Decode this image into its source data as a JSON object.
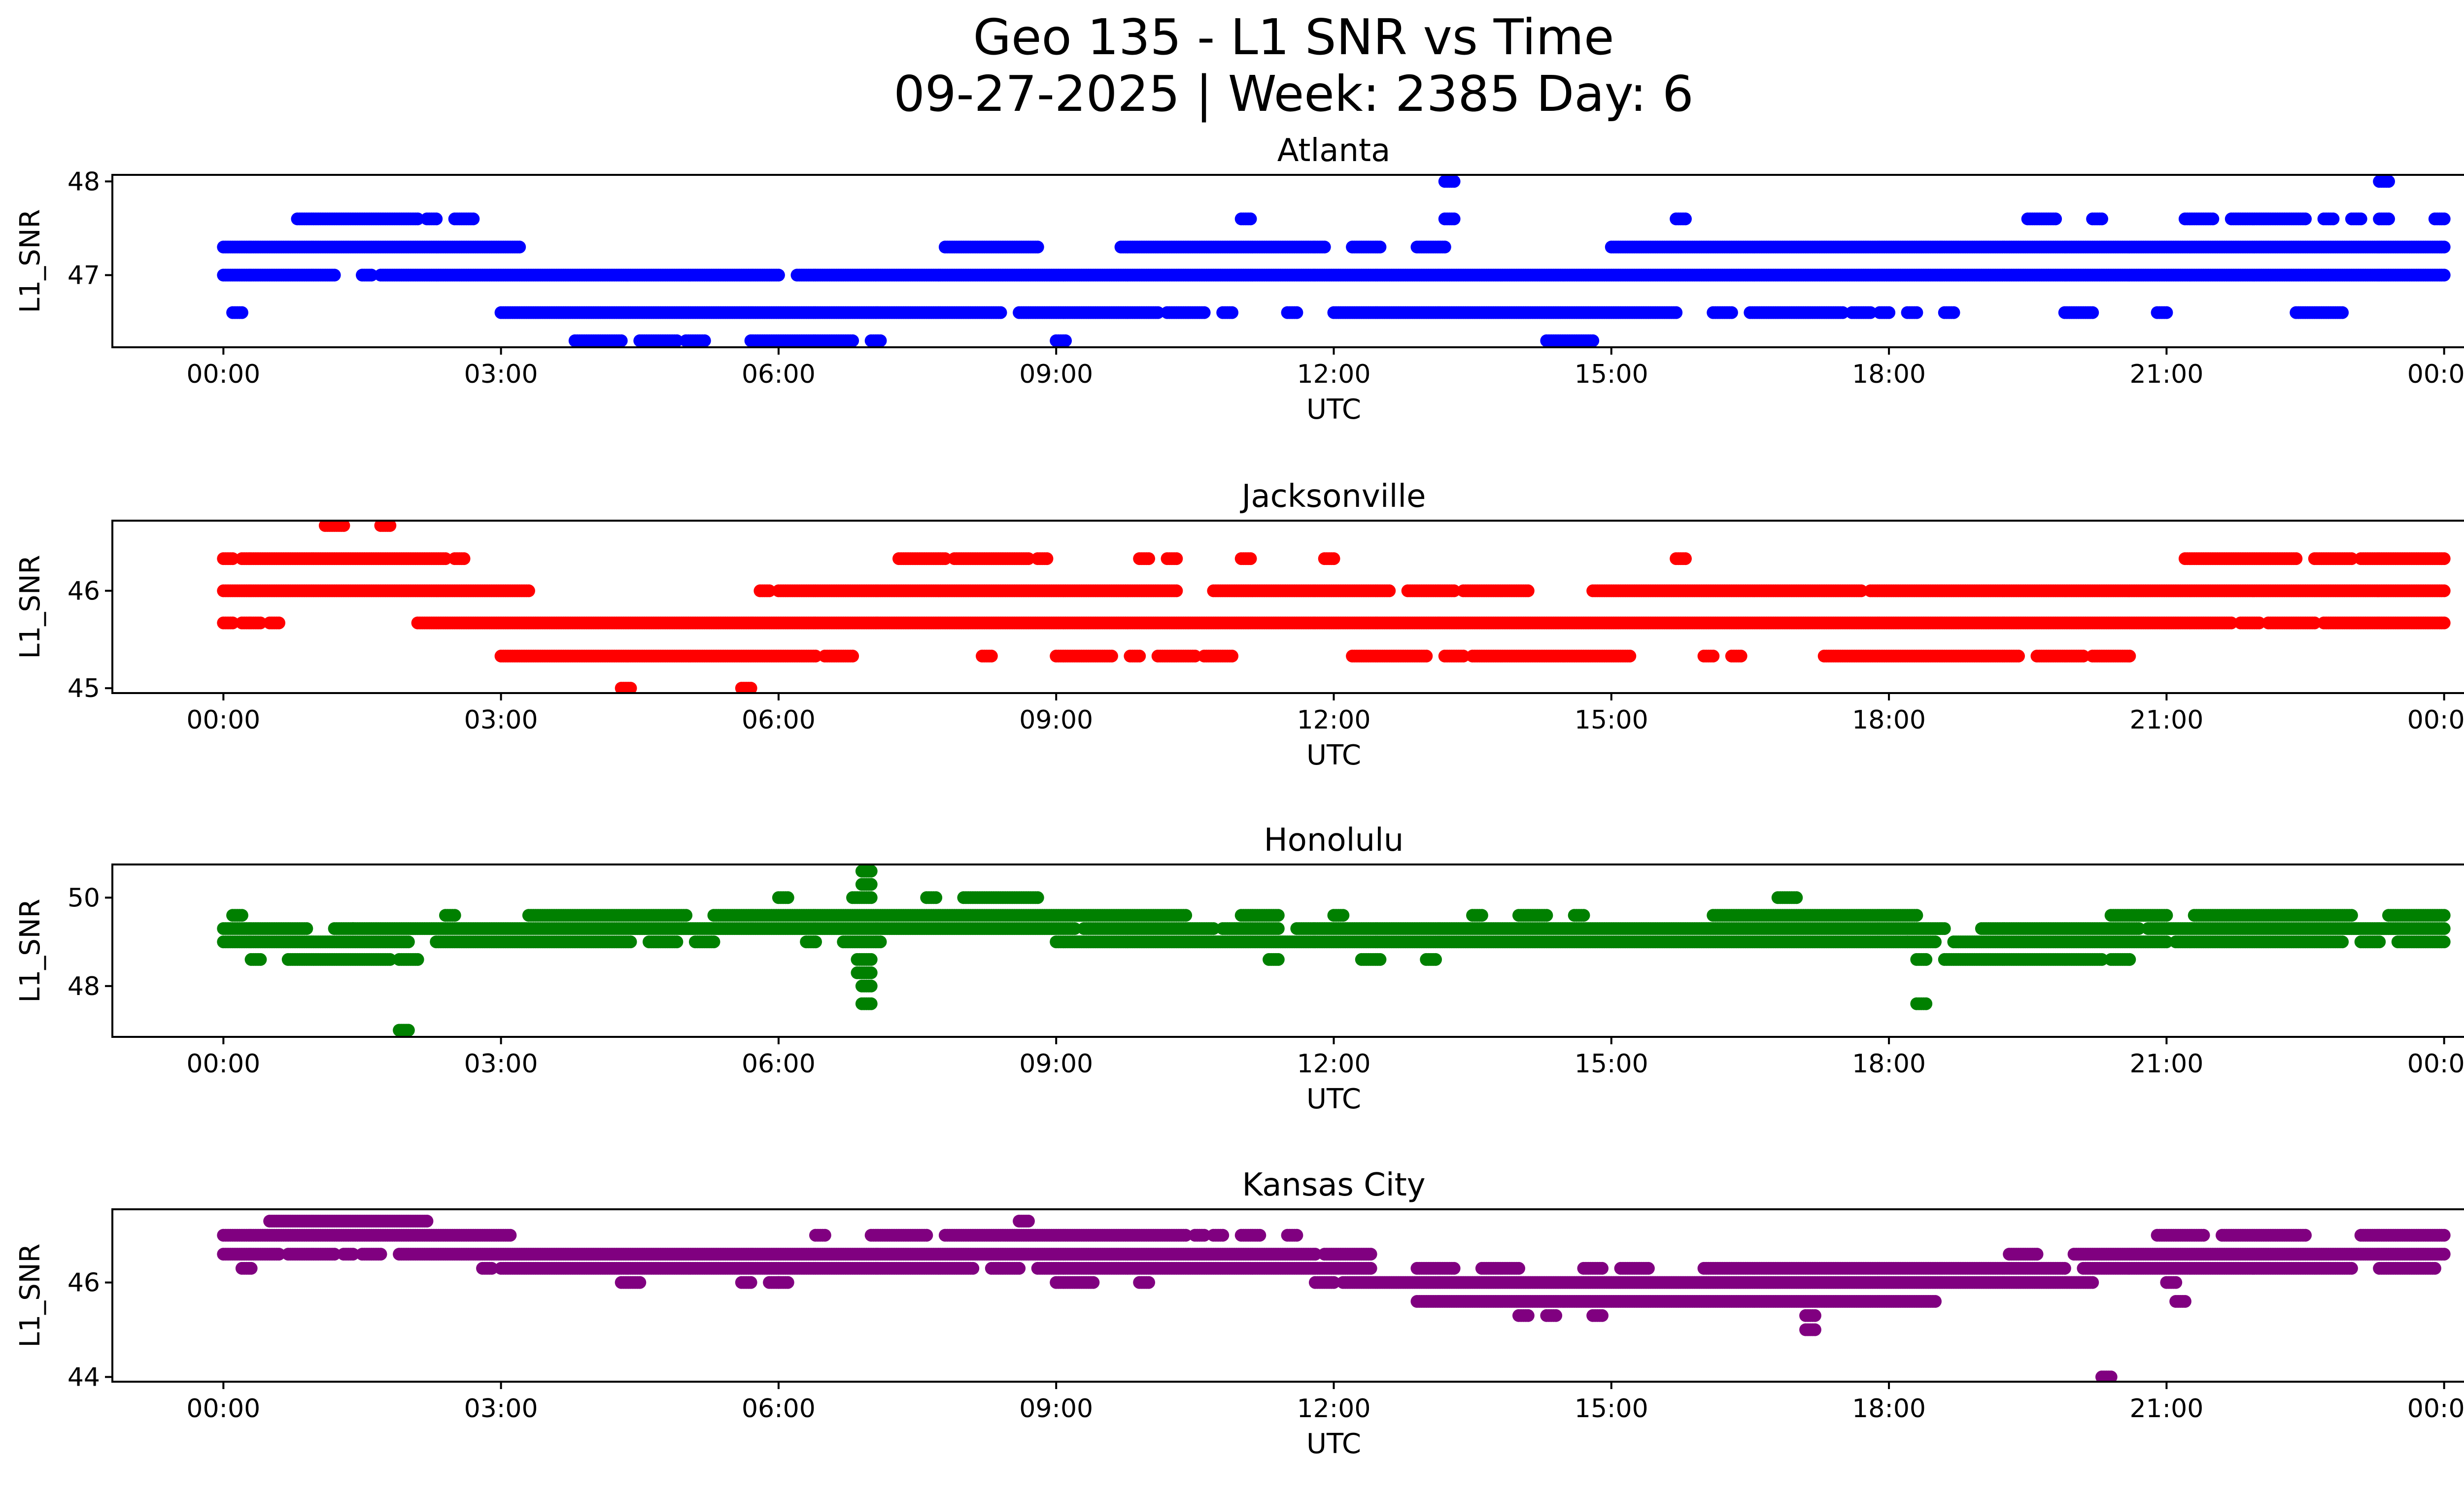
{
  "figure": {
    "title_line1": "Geo 135 - L1 SNR vs Time",
    "title_line2": "09-27-2025 | Week: 2385 Day: 6"
  },
  "chart_data": [
    {
      "type": "scatter",
      "title": "Atlanta",
      "xlabel": "UTC",
      "ylabel": "L1_SNR",
      "color": "#0000ff",
      "x_tick_labels": [
        "00:00",
        "03:00",
        "06:00",
        "09:00",
        "12:00",
        "15:00",
        "18:00",
        "21:00",
        "00:00"
      ],
      "x_tick_hours": [
        0,
        3,
        6,
        9,
        12,
        15,
        18,
        21,
        24
      ],
      "xlim_hours": [
        -1.2,
        25.2
      ],
      "y_ticks": [
        47,
        48
      ],
      "y_tick_labels": [
        "47",
        "48"
      ],
      "ylim": [
        46.23,
        48.07
      ],
      "levels": [
        {
          "y": 46.3,
          "segments": [
            [
              3.8,
              4.3
            ],
            [
              4.5,
              4.9
            ],
            [
              5.0,
              5.2
            ],
            [
              5.7,
              6.8
            ],
            [
              7.0,
              7.1
            ],
            [
              9.0,
              9.1
            ],
            [
              14.3,
              14.8
            ]
          ]
        },
        {
          "y": 46.6,
          "segments": [
            [
              0.1,
              0.2
            ],
            [
              3.0,
              8.4
            ],
            [
              8.6,
              10.1
            ],
            [
              10.2,
              10.6
            ],
            [
              10.8,
              10.9
            ],
            [
              11.5,
              11.6
            ],
            [
              12.0,
              15.7
            ],
            [
              16.1,
              16.3
            ],
            [
              16.5,
              17.5
            ],
            [
              17.6,
              17.8
            ],
            [
              17.9,
              18.0
            ],
            [
              18.2,
              18.3
            ],
            [
              18.6,
              18.7
            ],
            [
              19.9,
              20.2
            ],
            [
              20.9,
              21.0
            ],
            [
              22.4,
              22.9
            ]
          ]
        },
        {
          "y": 47.0,
          "segments": [
            [
              0.0,
              1.2
            ],
            [
              1.5,
              1.6
            ],
            [
              1.7,
              6.0
            ],
            [
              6.2,
              24.0
            ]
          ]
        },
        {
          "y": 47.3,
          "segments": [
            [
              0.0,
              3.2
            ],
            [
              7.8,
              8.8
            ],
            [
              9.7,
              11.9
            ],
            [
              12.2,
              12.5
            ],
            [
              12.9,
              13.2
            ],
            [
              15.0,
              24.0
            ]
          ]
        },
        {
          "y": 47.6,
          "segments": [
            [
              0.8,
              2.1
            ],
            [
              2.2,
              2.3
            ],
            [
              2.5,
              2.7
            ],
            [
              11.0,
              11.1
            ],
            [
              13.2,
              13.3
            ],
            [
              15.7,
              15.8
            ],
            [
              19.5,
              19.8
            ],
            [
              20.2,
              20.3
            ],
            [
              21.2,
              21.5
            ],
            [
              21.7,
              22.5
            ],
            [
              22.7,
              22.8
            ],
            [
              23.0,
              23.1
            ],
            [
              23.3,
              23.4
            ],
            [
              23.9,
              24.0
            ]
          ]
        },
        {
          "y": 48.0,
          "segments": [
            [
              13.2,
              13.3
            ],
            [
              23.3,
              23.4
            ]
          ]
        }
      ]
    },
    {
      "type": "scatter",
      "title": "Jacksonville",
      "xlabel": "UTC",
      "ylabel": "L1_SNR",
      "color": "#ff0000",
      "x_tick_labels": [
        "00:00",
        "03:00",
        "06:00",
        "09:00",
        "12:00",
        "15:00",
        "18:00",
        "21:00",
        "00:00"
      ],
      "x_tick_hours": [
        0,
        3,
        6,
        9,
        12,
        15,
        18,
        21,
        24
      ],
      "xlim_hours": [
        -1.2,
        25.2
      ],
      "y_ticks": [
        45,
        46
      ],
      "y_tick_labels": [
        "45",
        "46"
      ],
      "ylim": [
        44.95,
        46.72
      ],
      "levels": [
        {
          "y": 45.0,
          "segments": [
            [
              4.3,
              4.4
            ],
            [
              5.6,
              5.7
            ]
          ]
        },
        {
          "y": 45.33,
          "segments": [
            [
              3.0,
              6.4
            ],
            [
              6.5,
              6.8
            ],
            [
              8.2,
              8.3
            ],
            [
              9.0,
              9.6
            ],
            [
              9.8,
              9.9
            ],
            [
              10.1,
              10.5
            ],
            [
              10.6,
              10.9
            ],
            [
              12.2,
              13.0
            ],
            [
              13.2,
              13.4
            ],
            [
              13.5,
              15.2
            ],
            [
              16.0,
              16.1
            ],
            [
              16.3,
              16.4
            ],
            [
              17.3,
              19.4
            ],
            [
              19.6,
              20.1
            ],
            [
              20.2,
              20.6
            ]
          ]
        },
        {
          "y": 45.67,
          "segments": [
            [
              0.0,
              0.1
            ],
            [
              0.2,
              0.4
            ],
            [
              0.5,
              0.6
            ],
            [
              2.1,
              21.7
            ],
            [
              21.8,
              22.0
            ],
            [
              22.1,
              22.6
            ],
            [
              22.7,
              24.0
            ]
          ]
        },
        {
          "y": 46.0,
          "segments": [
            [
              0.0,
              3.3
            ],
            [
              5.8,
              5.9
            ],
            [
              6.0,
              10.3
            ],
            [
              10.7,
              12.6
            ],
            [
              12.8,
              13.3
            ],
            [
              13.4,
              14.1
            ],
            [
              14.8,
              17.7
            ],
            [
              17.8,
              24.0
            ]
          ]
        },
        {
          "y": 46.33,
          "segments": [
            [
              0.0,
              0.1
            ],
            [
              0.2,
              2.4
            ],
            [
              2.5,
              2.6
            ],
            [
              7.3,
              7.8
            ],
            [
              7.9,
              8.7
            ],
            [
              8.8,
              8.9
            ],
            [
              9.9,
              10.0
            ],
            [
              10.2,
              10.3
            ],
            [
              11.0,
              11.1
            ],
            [
              11.9,
              12.0
            ],
            [
              15.7,
              15.8
            ],
            [
              21.2,
              22.4
            ],
            [
              22.6,
              23.0
            ],
            [
              23.1,
              24.0
            ]
          ]
        },
        {
          "y": 46.67,
          "segments": [
            [
              1.1,
              1.3
            ],
            [
              1.7,
              1.8
            ]
          ]
        }
      ]
    },
    {
      "type": "scatter",
      "title": "Honolulu",
      "xlabel": "UTC",
      "ylabel": "L1_SNR",
      "color": "#008000",
      "x_tick_labels": [
        "00:00",
        "03:00",
        "06:00",
        "09:00",
        "12:00",
        "15:00",
        "18:00",
        "21:00",
        "00:00"
      ],
      "x_tick_hours": [
        0,
        3,
        6,
        9,
        12,
        15,
        18,
        21,
        24
      ],
      "xlim_hours": [
        -1.2,
        25.2
      ],
      "y_ticks": [
        48,
        50
      ],
      "y_tick_labels": [
        "48",
        "50"
      ],
      "ylim": [
        46.85,
        50.75
      ],
      "levels": [
        {
          "y": 47.0,
          "segments": [
            [
              1.9,
              2.0
            ]
          ]
        },
        {
          "y": 47.6,
          "segments": [
            [
              6.9,
              7.0
            ],
            [
              18.3,
              18.4
            ]
          ]
        },
        {
          "y": 48.0,
          "segments": [
            [
              6.9,
              7.0
            ]
          ]
        },
        {
          "y": 48.3,
          "segments": [
            [
              6.85,
              7.0
            ]
          ]
        },
        {
          "y": 48.6,
          "segments": [
            [
              0.3,
              0.4
            ],
            [
              0.7,
              1.8
            ],
            [
              1.9,
              2.1
            ],
            [
              6.85,
              7.0
            ],
            [
              11.3,
              11.4
            ],
            [
              12.3,
              12.5
            ],
            [
              13.0,
              13.1
            ],
            [
              18.3,
              18.4
            ],
            [
              18.6,
              20.3
            ],
            [
              20.4,
              20.6
            ]
          ]
        },
        {
          "y": 49.0,
          "segments": [
            [
              0.0,
              2.0
            ],
            [
              2.3,
              4.4
            ],
            [
              4.6,
              4.9
            ],
            [
              5.1,
              5.3
            ],
            [
              6.3,
              6.4
            ],
            [
              6.7,
              7.1
            ],
            [
              9.0,
              18.2
            ],
            [
              18.2,
              18.5
            ],
            [
              18.7,
              21.0
            ],
            [
              21.1,
              22.9
            ],
            [
              23.1,
              23.3
            ],
            [
              23.5,
              24.0
            ]
          ]
        },
        {
          "y": 49.3,
          "segments": [
            [
              0.0,
              0.9
            ],
            [
              1.2,
              1.4
            ],
            [
              1.4,
              9.2
            ],
            [
              9.3,
              10.7
            ],
            [
              10.8,
              11.4
            ],
            [
              11.6,
              18.6
            ],
            [
              19.0,
              20.7
            ],
            [
              20.8,
              24.0
            ]
          ]
        },
        {
          "y": 49.6,
          "segments": [
            [
              0.1,
              0.2
            ],
            [
              2.4,
              2.5
            ],
            [
              3.3,
              5.0
            ],
            [
              5.3,
              10.4
            ],
            [
              11.0,
              11.4
            ],
            [
              12.0,
              12.1
            ],
            [
              13.5,
              13.6
            ],
            [
              14.0,
              14.3
            ],
            [
              14.6,
              14.7
            ],
            [
              16.1,
              18.3
            ],
            [
              20.4,
              21.0
            ],
            [
              21.3,
              23.0
            ],
            [
              23.4,
              24.0
            ]
          ]
        },
        {
          "y": 50.0,
          "segments": [
            [
              6.0,
              6.1
            ],
            [
              6.8,
              7.0
            ],
            [
              7.6,
              7.7
            ],
            [
              8.0,
              8.8
            ],
            [
              16.8,
              17.0
            ]
          ]
        },
        {
          "y": 50.3,
          "segments": [
            [
              6.9,
              7.0
            ]
          ]
        },
        {
          "y": 50.6,
          "segments": [
            [
              6.9,
              7.0
            ]
          ]
        }
      ]
    },
    {
      "type": "scatter",
      "title": "Kansas City",
      "xlabel": "UTC",
      "ylabel": "L1_SNR",
      "color": "#800080",
      "x_tick_labels": [
        "00:00",
        "03:00",
        "06:00",
        "09:00",
        "12:00",
        "15:00",
        "18:00",
        "21:00",
        "00:00"
      ],
      "x_tick_hours": [
        0,
        3,
        6,
        9,
        12,
        15,
        18,
        21,
        24
      ],
      "xlim_hours": [
        -1.2,
        25.2
      ],
      "y_ticks": [
        44,
        46
      ],
      "y_tick_labels": [
        "44",
        "46"
      ],
      "ylim": [
        43.9,
        47.55
      ],
      "levels": [
        {
          "y": 44.0,
          "segments": [
            [
              20.3,
              20.4
            ]
          ]
        },
        {
          "y": 45.0,
          "segments": [
            [
              17.1,
              17.2
            ]
          ]
        },
        {
          "y": 45.3,
          "segments": [
            [
              14.0,
              14.1
            ],
            [
              14.3,
              14.4
            ],
            [
              14.8,
              14.9
            ],
            [
              17.1,
              17.2
            ]
          ]
        },
        {
          "y": 45.6,
          "segments": [
            [
              12.9,
              18.5
            ],
            [
              21.1,
              21.2
            ]
          ]
        },
        {
          "y": 46.0,
          "segments": [
            [
              4.3,
              4.5
            ],
            [
              5.6,
              5.7
            ],
            [
              5.9,
              6.0
            ],
            [
              6.0,
              6.1
            ],
            [
              9.0,
              9.4
            ],
            [
              9.9,
              10.0
            ],
            [
              11.8,
              12.0
            ],
            [
              12.1,
              20.2
            ],
            [
              21.0,
              21.1
            ]
          ]
        },
        {
          "y": 46.3,
          "segments": [
            [
              0.2,
              0.3
            ],
            [
              2.8,
              2.9
            ],
            [
              3.0,
              8.1
            ],
            [
              8.3,
              8.6
            ],
            [
              8.8,
              12.4
            ],
            [
              12.9,
              13.3
            ],
            [
              13.6,
              14.0
            ],
            [
              14.7,
              14.9
            ],
            [
              15.1,
              15.4
            ],
            [
              16.0,
              19.9
            ],
            [
              20.1,
              23.0
            ],
            [
              23.3,
              23.9
            ]
          ]
        },
        {
          "y": 46.6,
          "segments": [
            [
              0.0,
              0.6
            ],
            [
              0.7,
              1.2
            ],
            [
              1.3,
              1.4
            ],
            [
              1.5,
              1.7
            ],
            [
              1.9,
              11.8
            ],
            [
              11.9,
              12.4
            ],
            [
              19.3,
              19.6
            ],
            [
              20.0,
              24.0
            ]
          ]
        },
        {
          "y": 47.0,
          "segments": [
            [
              0.0,
              3.1
            ],
            [
              6.4,
              6.5
            ],
            [
              7.0,
              7.6
            ],
            [
              7.8,
              10.4
            ],
            [
              10.5,
              10.6
            ],
            [
              10.7,
              10.8
            ],
            [
              11.0,
              11.2
            ],
            [
              11.5,
              11.6
            ],
            [
              20.9,
              21.4
            ],
            [
              21.6,
              22.5
            ],
            [
              23.1,
              24.0
            ]
          ]
        },
        {
          "y": 47.3,
          "segments": [
            [
              0.5,
              2.2
            ],
            [
              8.6,
              8.7
            ]
          ]
        }
      ]
    }
  ]
}
